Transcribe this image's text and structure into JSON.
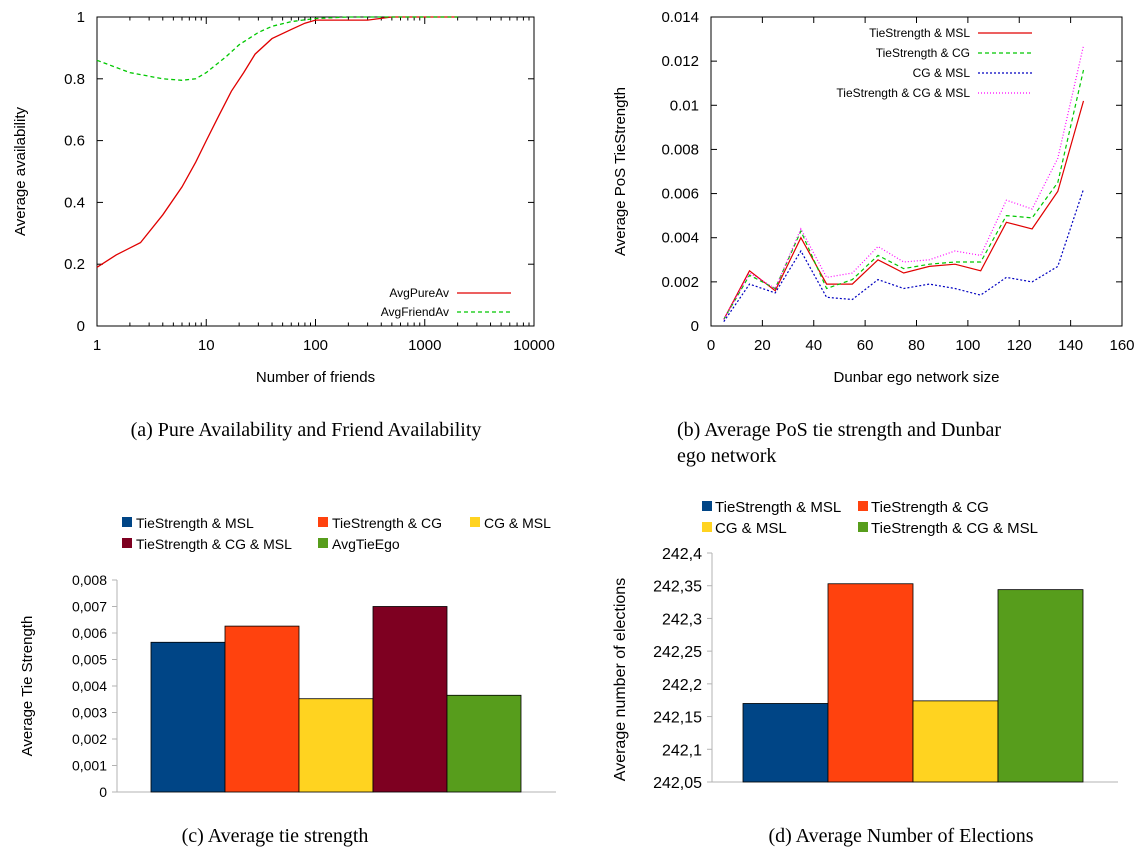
{
  "chart_data": [
    {
      "type": "line",
      "xlabel": "Number of friends",
      "ylabel": "Average availability",
      "xscale": "log",
      "xlim": [
        1,
        10000
      ],
      "ylim": [
        0,
        1
      ],
      "xticks": [
        1,
        10,
        100,
        1000,
        10000
      ],
      "xtick_labels": [
        "1",
        "10",
        "100",
        "1000",
        "10000"
      ],
      "yticks": [
        0,
        0.2,
        0.4,
        0.6,
        0.8,
        1
      ],
      "ytick_labels": [
        "0",
        "0.2",
        "0.4",
        "0.6",
        "0.8",
        "1"
      ],
      "legend_position": "bottom-right",
      "caption": "(a) Pure Availability and Friend Availability",
      "series": [
        {
          "name": "AvgPureAv",
          "color": "#e00000",
          "dash": "solid",
          "points": [
            [
              1,
              0.19
            ],
            [
              1.5,
              0.23
            ],
            [
              2.5,
              0.27
            ],
            [
              4,
              0.36
            ],
            [
              6,
              0.45
            ],
            [
              8,
              0.53
            ],
            [
              10,
              0.6
            ],
            [
              13,
              0.68
            ],
            [
              17,
              0.76
            ],
            [
              22,
              0.82
            ],
            [
              28,
              0.88
            ],
            [
              40,
              0.93
            ],
            [
              60,
              0.96
            ],
            [
              80,
              0.98
            ],
            [
              100,
              0.99
            ],
            [
              200,
              0.99
            ],
            [
              300,
              0.99
            ],
            [
              500,
              1
            ],
            [
              1000,
              1
            ],
            [
              2000,
              1
            ]
          ]
        },
        {
          "name": "AvgFriendAv",
          "color": "#00c800",
          "dash": "4,3",
          "points": [
            [
              1,
              0.86
            ],
            [
              2,
              0.82
            ],
            [
              4,
              0.8
            ],
            [
              6,
              0.795
            ],
            [
              8,
              0.8
            ],
            [
              10,
              0.82
            ],
            [
              15,
              0.87
            ],
            [
              20,
              0.91
            ],
            [
              30,
              0.95
            ],
            [
              40,
              0.97
            ],
            [
              60,
              0.985
            ],
            [
              100,
              0.995
            ],
            [
              200,
              1
            ],
            [
              500,
              1
            ],
            [
              1000,
              1
            ],
            [
              2000,
              1
            ]
          ]
        }
      ]
    },
    {
      "type": "line",
      "xlabel": "Dunbar ego network size",
      "ylabel": "Average PoS TieStrength",
      "xlim": [
        0,
        160
      ],
      "ylim": [
        0,
        0.014
      ],
      "xticks": [
        0,
        20,
        40,
        60,
        80,
        100,
        120,
        140,
        160
      ],
      "xtick_labels": [
        "0",
        "20",
        "40",
        "60",
        "80",
        "100",
        "120",
        "140",
        "160"
      ],
      "yticks": [
        0,
        0.002,
        0.004,
        0.006,
        0.008,
        0.01,
        0.012,
        0.014
      ],
      "ytick_labels": [
        "0",
        "0.002",
        "0.004",
        "0.006",
        "0.008",
        "0.01",
        "0.012",
        "0.014"
      ],
      "legend_position": "top-right",
      "caption": "(b) Average PoS tie strength and Dunbar ego network",
      "x": [
        5,
        15,
        25,
        35,
        45,
        55,
        65,
        75,
        85,
        95,
        105,
        115,
        125,
        135,
        145
      ],
      "series": [
        {
          "name": "TieStrength & MSL",
          "color": "#e00000",
          "dash": "solid",
          "values": [
            0.0003,
            0.0025,
            0.0016,
            0.004,
            0.0019,
            0.0019,
            0.003,
            0.0024,
            0.0027,
            0.0028,
            0.0025,
            0.0047,
            0.0044,
            0.0061,
            0.0102
          ]
        },
        {
          "name": "TieStrength & CG",
          "color": "#00c800",
          "dash": "4,3",
          "values": [
            0.0003,
            0.0023,
            0.0017,
            0.0043,
            0.0017,
            0.0021,
            0.0032,
            0.0026,
            0.0028,
            0.0029,
            0.0029,
            0.005,
            0.0049,
            0.0065,
            0.0116
          ]
        },
        {
          "name": "CG & MSL",
          "color": "#0000c0",
          "dash": "2,2",
          "values": [
            0.0002,
            0.0019,
            0.0015,
            0.0034,
            0.0013,
            0.0012,
            0.0021,
            0.0017,
            0.0019,
            0.0017,
            0.0014,
            0.0022,
            0.002,
            0.0027,
            0.0062
          ]
        },
        {
          "name": "TieStrength & CG & MSL",
          "color": "#ff00ff",
          "dash": "1,2",
          "values": [
            0.0003,
            0.0024,
            0.0017,
            0.0044,
            0.0022,
            0.0024,
            0.0036,
            0.0029,
            0.003,
            0.0034,
            0.0032,
            0.0057,
            0.0053,
            0.0076,
            0.0127
          ]
        }
      ]
    },
    {
      "type": "bar",
      "ylabel": "Average Tie Strength",
      "ylim": [
        0,
        0.008
      ],
      "yticks": [
        0,
        0.001,
        0.002,
        0.003,
        0.004,
        0.005,
        0.006,
        0.007,
        0.008
      ],
      "ytick_labels": [
        "0",
        "0,001",
        "0,002",
        "0,003",
        "0,004",
        "0,005",
        "0,006",
        "0,007",
        "0,008"
      ],
      "legend_position": "top",
      "caption": "(c) Average tie strength",
      "series": [
        {
          "name": "TieStrength & MSL",
          "color": "#004586",
          "value": 0.00565
        },
        {
          "name": "TieStrength & CG",
          "color": "#ff420e",
          "value": 0.00626
        },
        {
          "name": "CG & MSL",
          "color": "#ffd320",
          "value": 0.00352
        },
        {
          "name": "TieStrength & CG & MSL",
          "color": "#7e0021",
          "value": 0.007
        },
        {
          "name": "AvgTieEgo",
          "color": "#579d1c",
          "value": 0.00365
        }
      ]
    },
    {
      "type": "bar",
      "ylabel": "Average number of elections",
      "ylim": [
        242.05,
        242.4
      ],
      "yticks": [
        242.05,
        242.1,
        242.15,
        242.2,
        242.25,
        242.3,
        242.35,
        242.4
      ],
      "ytick_labels": [
        "242,05",
        "242,1",
        "242,15",
        "242,2",
        "242,25",
        "242,3",
        "242,35",
        "242,4"
      ],
      "legend_position": "top",
      "caption": "(d) Average Number of Elections",
      "series": [
        {
          "name": "TieStrength & MSL",
          "color": "#004586",
          "value": 242.17
        },
        {
          "name": "TieStrength & CG",
          "color": "#ff420e",
          "value": 242.353
        },
        {
          "name": "CG & MSL",
          "color": "#ffd320",
          "value": 242.174
        },
        {
          "name": "TieStrength & CG & MSL",
          "color": "#579d1c",
          "value": 242.344
        }
      ]
    }
  ]
}
